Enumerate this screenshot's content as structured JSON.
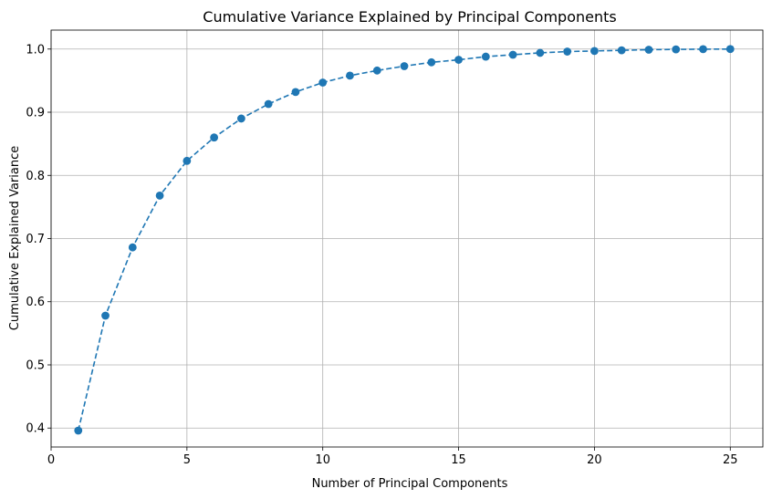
{
  "chart_data": {
    "type": "line",
    "title": "Cumulative Variance Explained by Principal Components",
    "xlabel": "Number of Principal Components",
    "ylabel": "Cumulative Explained Variance",
    "xlim": [
      0,
      26.2
    ],
    "ylim": [
      0.37,
      1.03
    ],
    "xticks": [
      0,
      5,
      10,
      15,
      20,
      25
    ],
    "yticks": [
      0.4,
      0.5,
      0.6,
      0.7,
      0.8,
      0.9,
      1.0
    ],
    "ytick_labels": [
      "0.4",
      "0.5",
      "0.6",
      "0.7",
      "0.8",
      "0.9",
      "1.0"
    ],
    "grid": true,
    "line_style": "dashed",
    "marker": "circle",
    "color": "#1f77b4",
    "x": [
      1,
      2,
      3,
      4,
      5,
      6,
      7,
      8,
      9,
      10,
      11,
      12,
      13,
      14,
      15,
      16,
      17,
      18,
      19,
      20,
      21,
      22,
      23,
      24,
      25
    ],
    "y": [
      0.396,
      0.578,
      0.686,
      0.768,
      0.823,
      0.86,
      0.89,
      0.913,
      0.932,
      0.947,
      0.958,
      0.966,
      0.973,
      0.979,
      0.983,
      0.988,
      0.991,
      0.994,
      0.996,
      0.997,
      0.998,
      0.999,
      0.9995,
      0.9998,
      1.0
    ]
  }
}
